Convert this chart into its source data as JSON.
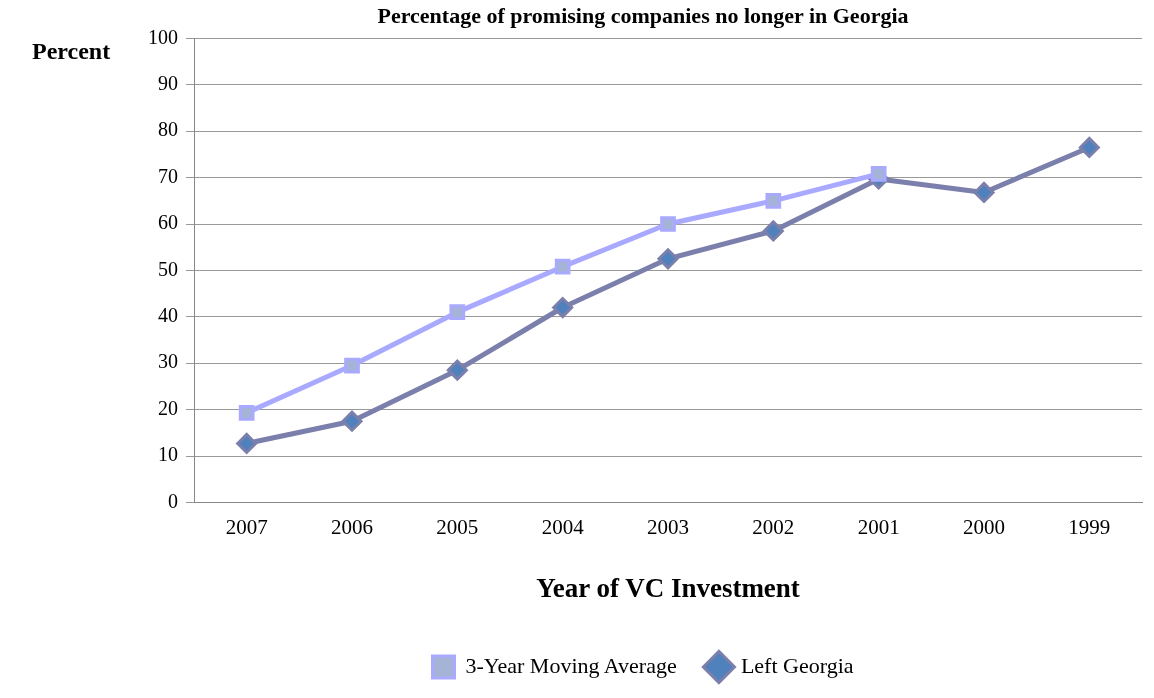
{
  "chart_data": {
    "type": "line",
    "title": "Percentage of promising companies no longer in Georgia",
    "xlabel": "Year of VC Investment",
    "ylabel": "Percent",
    "categories": [
      "2007",
      "2006",
      "2005",
      "2004",
      "2003",
      "2002",
      "2001",
      "2000",
      "1999"
    ],
    "series": [
      {
        "name": "Left Georgia",
        "color": "#7b7fab",
        "marker": "diamond",
        "values": [
          12.7,
          17.5,
          28.5,
          42,
          52.5,
          58.5,
          69.7,
          66.8,
          76.5
        ]
      },
      {
        "name": "3-Year Moving Average",
        "color": "#a9a9ff",
        "marker": "square",
        "values": [
          19.3,
          29.5,
          41,
          50.8,
          60,
          65,
          70.8,
          null,
          null
        ]
      }
    ],
    "ylim": [
      0,
      100
    ],
    "yticks": [
      0,
      10,
      20,
      30,
      40,
      50,
      60,
      70,
      80,
      90,
      100
    ],
    "grid": "y",
    "legend": "bottom",
    "line_style": "solid"
  }
}
